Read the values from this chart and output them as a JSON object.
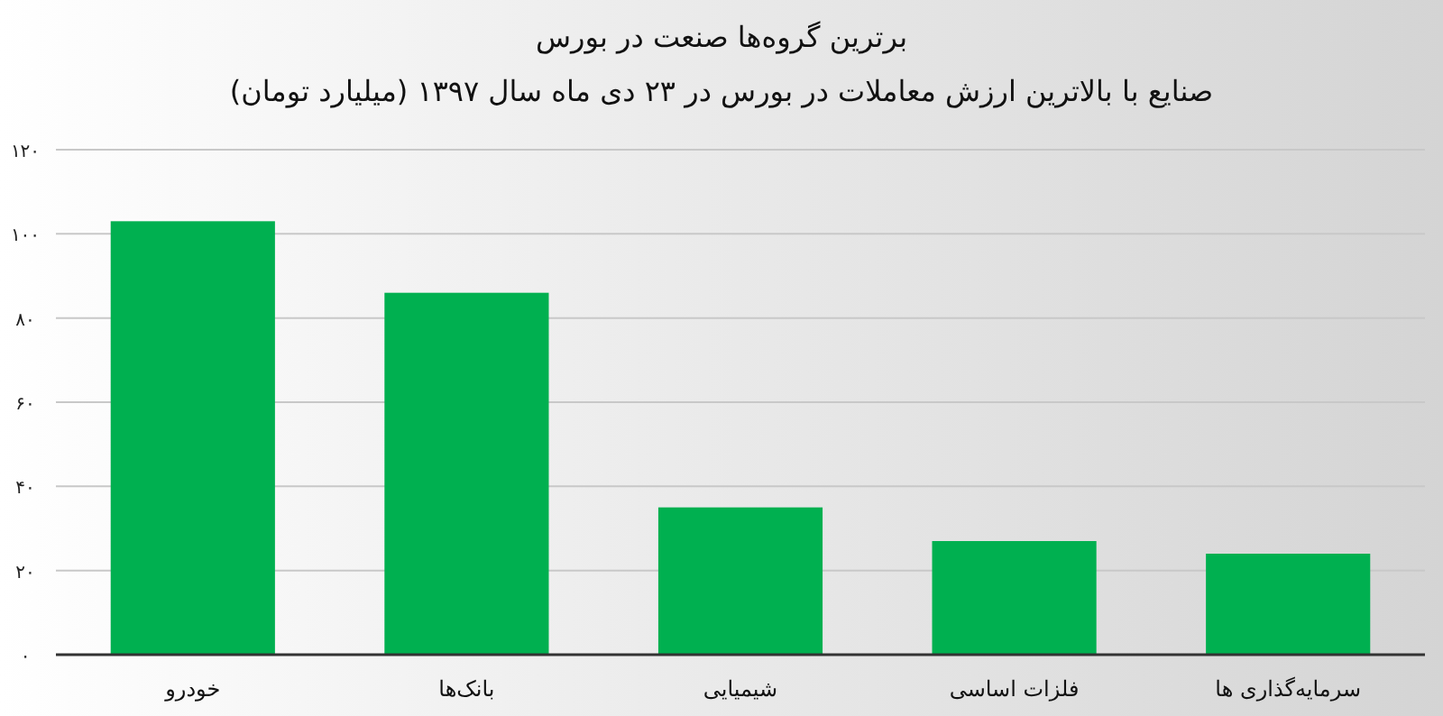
{
  "chart_data": {
    "type": "bar",
    "title": "برترین گروه‌ها صنعت در بورس",
    "subtitle": "صنایع با بالاترین ارزش معاملات در بورس در ۲۳ دی ماه سال ۱۳۹۷ (میلیارد تومان)",
    "categories": [
      "خودرو",
      "بانک‌ها",
      "شیمیایی",
      "فلزات اساسی",
      "سرمایه‌گذاری ها"
    ],
    "values": [
      103,
      86,
      35,
      27,
      24
    ],
    "color": "#00b050",
    "ylim": [
      0,
      120
    ],
    "yticks": [
      {
        "value": 0,
        "label": "۰"
      },
      {
        "value": 20,
        "label": "۲۰"
      },
      {
        "value": 40,
        "label": "۴۰"
      },
      {
        "value": 60,
        "label": "۶۰"
      },
      {
        "value": 80,
        "label": "۸۰"
      },
      {
        "value": 100,
        "label": "۱۰۰"
      },
      {
        "value": 120,
        "label": "۱۲۰"
      }
    ],
    "grid": "y"
  }
}
